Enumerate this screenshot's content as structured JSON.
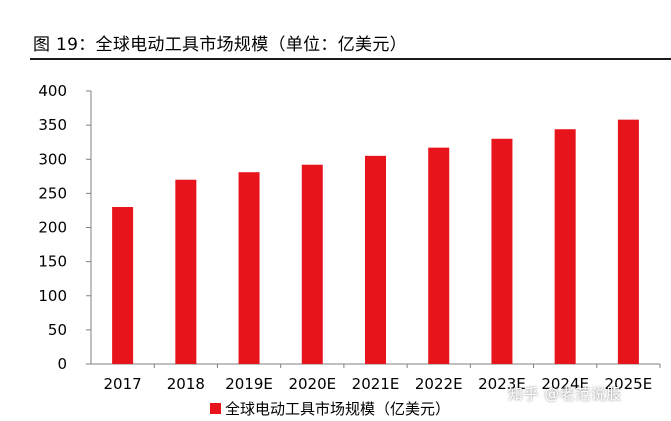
{
  "figure": {
    "title": "图 19：全球电动工具市场规模（单位：亿美元）"
  },
  "watermark": "知乎 @老范说股",
  "colors": {
    "bar": "#e8141c",
    "axis": "#7f7f7f",
    "rule": "#1a1a1a"
  },
  "chart_data": {
    "type": "bar",
    "title": "",
    "xlabel": "",
    "ylabel": "",
    "categories": [
      "2017",
      "2018",
      "2019E",
      "2020E",
      "2021E",
      "2022E",
      "2023E",
      "2024E",
      "2025E"
    ],
    "series": [
      {
        "name": "全球电动工具市场规模（亿美元）",
        "values": [
          230,
          270,
          281,
          292,
          305,
          317,
          330,
          344,
          358
        ]
      }
    ],
    "ylim": [
      0,
      400
    ],
    "yticks": [
      "0",
      "50",
      "100",
      "150",
      "200",
      "250",
      "300",
      "350",
      "400"
    ],
    "grid": false,
    "legend_position": "bottom"
  }
}
